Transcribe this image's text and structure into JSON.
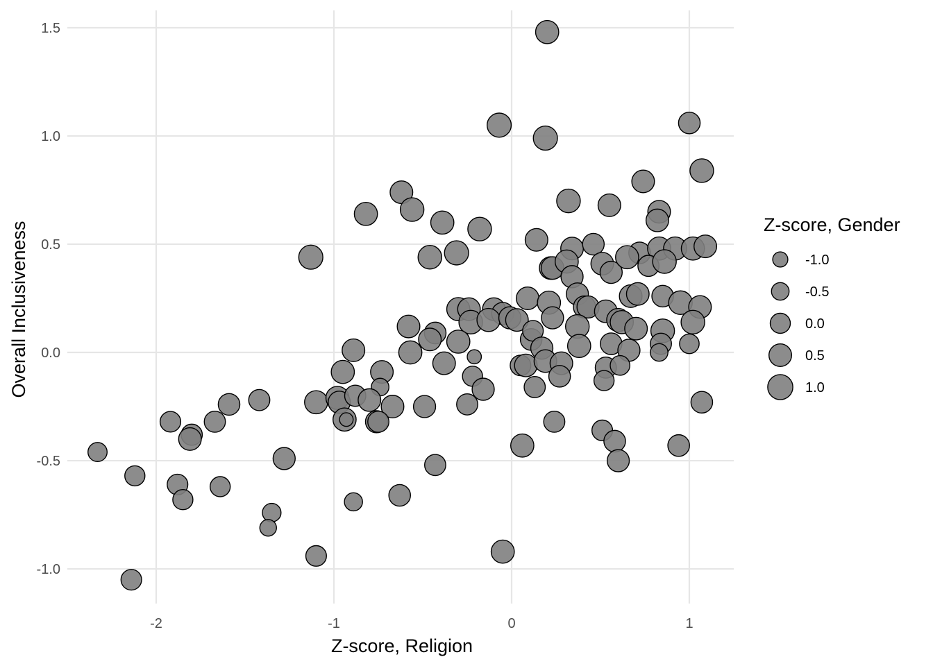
{
  "chart_data": {
    "type": "scatter",
    "title": "",
    "xlabel": "Z-score, Religion",
    "ylabel": "Overall Inclusiveness",
    "xlim": [
      -2.5,
      1.25
    ],
    "ylim": [
      -1.16,
      1.58
    ],
    "x_ticks": [
      -2,
      -1,
      0,
      1
    ],
    "x_tick_labels": [
      "-2",
      "-1",
      "0",
      "1"
    ],
    "y_ticks": [
      -1.0,
      -0.5,
      0.0,
      0.5,
      1.0,
      1.5
    ],
    "y_tick_labels": [
      "-1.0",
      "-0.5",
      "0.0",
      "0.5",
      "1.0",
      "1.5"
    ],
    "grid": true,
    "point_color": "#7f7f7f",
    "point_stroke": "#000000",
    "size_legend": {
      "title": "Z-score, Gender",
      "values": [
        -1.0,
        -0.5,
        0.0,
        0.5,
        1.0
      ],
      "labels": [
        "-1.0",
        "-0.5",
        "0.0",
        "0.5",
        "1.0"
      ],
      "placement": "right"
    },
    "points": [
      {
        "x": 0.2,
        "y": 1.48,
        "size": 0.6
      },
      {
        "x": -0.07,
        "y": 1.05,
        "size": 0.8
      },
      {
        "x": 0.19,
        "y": 0.99,
        "size": 0.8
      },
      {
        "x": 1.0,
        "y": 1.06,
        "size": 0.3
      },
      {
        "x": 1.07,
        "y": 0.84,
        "size": 0.7
      },
      {
        "x": 0.74,
        "y": 0.79,
        "size": 0.5
      },
      {
        "x": -0.62,
        "y": 0.74,
        "size": 0.5
      },
      {
        "x": -0.56,
        "y": 0.66,
        "size": 0.7
      },
      {
        "x": -0.82,
        "y": 0.64,
        "size": 0.6
      },
      {
        "x": -0.39,
        "y": 0.6,
        "size": 0.6
      },
      {
        "x": -0.18,
        "y": 0.57,
        "size": 0.7
      },
      {
        "x": 0.32,
        "y": 0.7,
        "size": 0.7
      },
      {
        "x": 0.55,
        "y": 0.68,
        "size": 0.5
      },
      {
        "x": 0.83,
        "y": 0.65,
        "size": 0.5
      },
      {
        "x": 0.82,
        "y": 0.61,
        "size": 0.5
      },
      {
        "x": 0.14,
        "y": 0.52,
        "size": 0.5
      },
      {
        "x": 0.34,
        "y": 0.48,
        "size": 0.5
      },
      {
        "x": 0.46,
        "y": 0.5,
        "size": 0.3
      },
      {
        "x": -1.13,
        "y": 0.44,
        "size": 0.8
      },
      {
        "x": -0.46,
        "y": 0.44,
        "size": 0.7
      },
      {
        "x": -0.31,
        "y": 0.46,
        "size": 0.8
      },
      {
        "x": 0.72,
        "y": 0.46,
        "size": 0.3
      },
      {
        "x": 0.83,
        "y": 0.48,
        "size": 0.6
      },
      {
        "x": 0.92,
        "y": 0.48,
        "size": 0.6
      },
      {
        "x": 1.02,
        "y": 0.48,
        "size": 0.6
      },
      {
        "x": 1.09,
        "y": 0.49,
        "size": 0.5
      },
      {
        "x": 0.22,
        "y": 0.39,
        "size": 0.5
      },
      {
        "x": 0.23,
        "y": 0.39,
        "size": 0.5
      },
      {
        "x": 0.31,
        "y": 0.42,
        "size": 0.6
      },
      {
        "x": 0.51,
        "y": 0.41,
        "size": 0.5
      },
      {
        "x": 0.56,
        "y": 0.37,
        "size": 0.4
      },
      {
        "x": 0.65,
        "y": 0.44,
        "size": 0.6
      },
      {
        "x": 0.77,
        "y": 0.4,
        "size": 0.2
      },
      {
        "x": 0.86,
        "y": 0.42,
        "size": 0.7
      },
      {
        "x": 0.34,
        "y": 0.35,
        "size": 0.4
      },
      {
        "x": 0.37,
        "y": 0.27,
        "size": 0.4
      },
      {
        "x": 0.09,
        "y": 0.25,
        "size": 0.5
      },
      {
        "x": 0.21,
        "y": 0.23,
        "size": 0.6
      },
      {
        "x": -0.3,
        "y": 0.2,
        "size": 0.6
      },
      {
        "x": -0.24,
        "y": 0.2,
        "size": 0.5
      },
      {
        "x": -0.1,
        "y": 0.2,
        "size": 0.5
      },
      {
        "x": -0.05,
        "y": 0.18,
        "size": 0.4
      },
      {
        "x": 0.41,
        "y": 0.21,
        "size": 0.4
      },
      {
        "x": 0.43,
        "y": 0.21,
        "size": 0.4
      },
      {
        "x": 0.53,
        "y": 0.19,
        "size": 0.5
      },
      {
        "x": 0.67,
        "y": 0.26,
        "size": 0.5
      },
      {
        "x": 0.71,
        "y": 0.27,
        "size": 0.5
      },
      {
        "x": 0.85,
        "y": 0.26,
        "size": 0.3
      },
      {
        "x": 0.95,
        "y": 0.23,
        "size": 0.7
      },
      {
        "x": 1.06,
        "y": 0.21,
        "size": 0.5
      },
      {
        "x": -0.58,
        "y": 0.12,
        "size": 0.5
      },
      {
        "x": -0.43,
        "y": 0.09,
        "size": 0.3
      },
      {
        "x": -0.46,
        "y": 0.06,
        "size": 0.5
      },
      {
        "x": -0.23,
        "y": 0.14,
        "size": 0.7
      },
      {
        "x": -0.13,
        "y": 0.15,
        "size": 0.6
      },
      {
        "x": -0.01,
        "y": 0.16,
        "size": 0.4
      },
      {
        "x": 0.03,
        "y": 0.15,
        "size": 0.5
      },
      {
        "x": 0.23,
        "y": 0.16,
        "size": 0.4
      },
      {
        "x": 0.37,
        "y": 0.12,
        "size": 0.7
      },
      {
        "x": 0.6,
        "y": 0.15,
        "size": 0.6
      },
      {
        "x": 0.62,
        "y": 0.14,
        "size": 0.6
      },
      {
        "x": 0.7,
        "y": 0.11,
        "size": 0.5
      },
      {
        "x": 0.85,
        "y": 0.1,
        "size": 0.7
      },
      {
        "x": 1.02,
        "y": 0.14,
        "size": 0.7
      },
      {
        "x": -0.57,
        "y": 0.0,
        "size": 0.6
      },
      {
        "x": -0.89,
        "y": 0.01,
        "size": 0.5
      },
      {
        "x": -0.3,
        "y": 0.05,
        "size": 0.6
      },
      {
        "x": 0.11,
        "y": 0.06,
        "size": 0.3
      },
      {
        "x": 0.12,
        "y": 0.1,
        "size": 0.1
      },
      {
        "x": 0.17,
        "y": 0.02,
        "size": 0.4
      },
      {
        "x": 0.38,
        "y": 0.03,
        "size": 0.6
      },
      {
        "x": 0.56,
        "y": 0.04,
        "size": 0.3
      },
      {
        "x": 0.66,
        "y": 0.01,
        "size": 0.4
      },
      {
        "x": 0.84,
        "y": 0.04,
        "size": 0.2
      },
      {
        "x": 0.83,
        "y": 0.0,
        "size": -0.5
      },
      {
        "x": 1.0,
        "y": 0.04,
        "size": -0.1
      },
      {
        "x": -0.21,
        "y": -0.02,
        "size": -1.2
      },
      {
        "x": -0.95,
        "y": -0.09,
        "size": 0.6
      },
      {
        "x": -0.73,
        "y": -0.09,
        "size": 0.5
      },
      {
        "x": -0.38,
        "y": -0.05,
        "size": 0.5
      },
      {
        "x": 0.05,
        "y": -0.06,
        "size": 0.1
      },
      {
        "x": 0.08,
        "y": -0.06,
        "size": 0.5
      },
      {
        "x": 0.19,
        "y": -0.04,
        "size": 0.5
      },
      {
        "x": 0.28,
        "y": -0.05,
        "size": 0.5
      },
      {
        "x": 0.27,
        "y": -0.11,
        "size": 0.3
      },
      {
        "x": 0.53,
        "y": -0.07,
        "size": 0.2
      },
      {
        "x": 0.52,
        "y": -0.13,
        "size": 0.0
      },
      {
        "x": 0.61,
        "y": -0.06,
        "size": -0.1
      },
      {
        "x": -0.74,
        "y": -0.16,
        "size": -0.5
      },
      {
        "x": -0.22,
        "y": -0.11,
        "size": 0.0
      },
      {
        "x": -0.16,
        "y": -0.17,
        "size": 0.4
      },
      {
        "x": 0.13,
        "y": -0.16,
        "size": 0.2
      },
      {
        "x": -1.1,
        "y": -0.23,
        "size": 0.6
      },
      {
        "x": -0.98,
        "y": -0.21,
        "size": 0.6
      },
      {
        "x": -0.97,
        "y": -0.23,
        "size": 0.4
      },
      {
        "x": -0.88,
        "y": -0.2,
        "size": 0.2
      },
      {
        "x": -0.8,
        "y": -0.22,
        "size": 0.5
      },
      {
        "x": -0.67,
        "y": -0.25,
        "size": 0.5
      },
      {
        "x": -0.49,
        "y": -0.25,
        "size": 0.4
      },
      {
        "x": -0.25,
        "y": -0.24,
        "size": 0.2
      },
      {
        "x": 1.07,
        "y": -0.23,
        "size": 0.3
      },
      {
        "x": -1.59,
        "y": -0.24,
        "size": 0.3
      },
      {
        "x": -1.42,
        "y": -0.22,
        "size": 0.2
      },
      {
        "x": -0.94,
        "y": -0.31,
        "size": 0.6
      },
      {
        "x": -0.93,
        "y": -0.31,
        "size": -1.3
      },
      {
        "x": -0.76,
        "y": -0.32,
        "size": 0.4
      },
      {
        "x": -0.75,
        "y": -0.32,
        "size": 0.2
      },
      {
        "x": -1.92,
        "y": -0.32,
        "size": 0.1
      },
      {
        "x": -1.67,
        "y": -0.32,
        "size": 0.2
      },
      {
        "x": -1.8,
        "y": -0.38,
        "size": 0.2
      },
      {
        "x": -1.81,
        "y": -0.4,
        "size": 0.5
      },
      {
        "x": 0.24,
        "y": -0.32,
        "size": 0.2
      },
      {
        "x": 0.51,
        "y": -0.36,
        "size": 0.1
      },
      {
        "x": 0.58,
        "y": -0.41,
        "size": 0.3
      },
      {
        "x": 0.06,
        "y": -0.43,
        "size": 0.6
      },
      {
        "x": 0.94,
        "y": -0.43,
        "size": 0.3
      },
      {
        "x": -2.33,
        "y": -0.46,
        "size": -0.2
      },
      {
        "x": -1.28,
        "y": -0.49,
        "size": 0.4
      },
      {
        "x": 0.6,
        "y": -0.5,
        "size": 0.4
      },
      {
        "x": -0.43,
        "y": -0.52,
        "size": 0.2
      },
      {
        "x": -2.12,
        "y": -0.57,
        "size": 0.0
      },
      {
        "x": -1.88,
        "y": -0.61,
        "size": 0.1
      },
      {
        "x": -1.64,
        "y": -0.62,
        "size": 0.0
      },
      {
        "x": -0.63,
        "y": -0.66,
        "size": 0.3
      },
      {
        "x": -1.85,
        "y": -0.68,
        "size": 0.0
      },
      {
        "x": -0.89,
        "y": -0.69,
        "size": -0.4
      },
      {
        "x": -1.35,
        "y": -0.74,
        "size": -0.3
      },
      {
        "x": -1.37,
        "y": -0.81,
        "size": -0.7
      },
      {
        "x": -0.05,
        "y": -0.92,
        "size": 0.6
      },
      {
        "x": -1.1,
        "y": -0.94,
        "size": 0.1
      },
      {
        "x": -2.14,
        "y": -1.05,
        "size": 0.1
      }
    ]
  }
}
